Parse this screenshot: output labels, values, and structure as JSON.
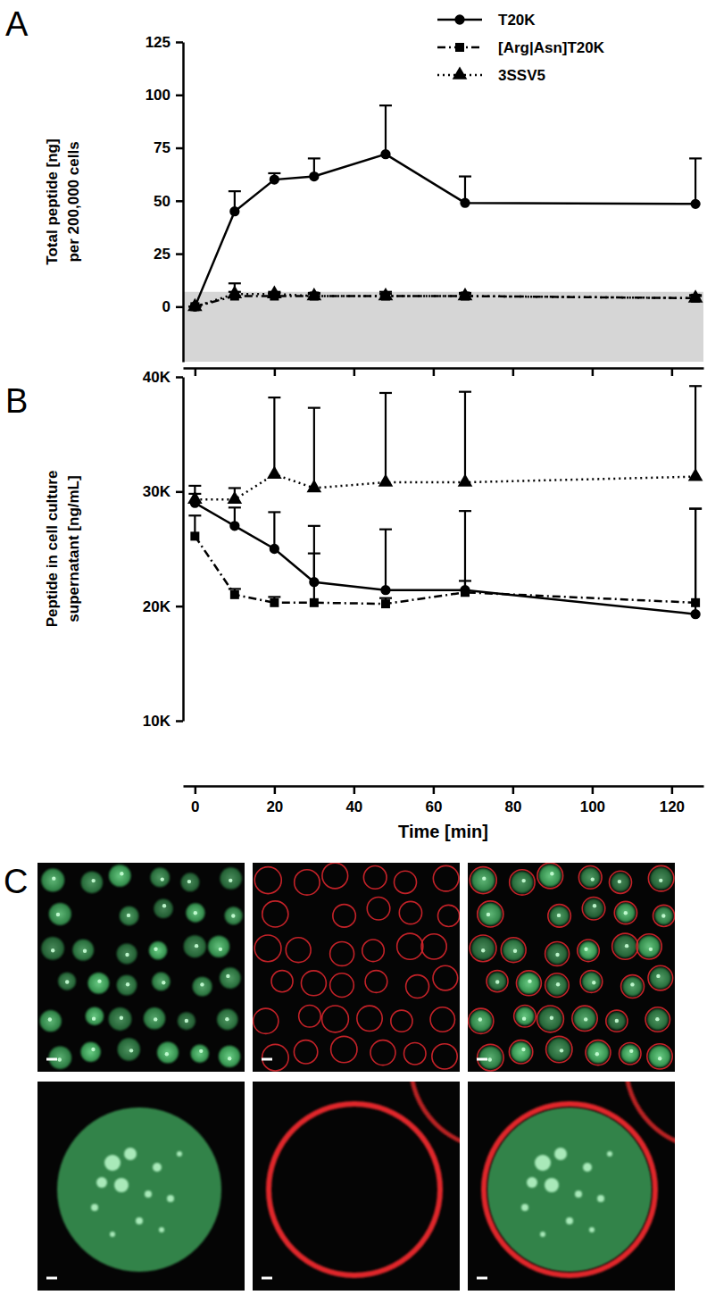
{
  "chart_data": [
    {
      "type": "line",
      "title": "A",
      "ylabel": [
        "Total peptide [ng]",
        "per 200,000 cells"
      ],
      "x": [
        0,
        10,
        20,
        30,
        48,
        68,
        126
      ],
      "xlim": [
        -3,
        128
      ],
      "xticks": [
        0,
        20,
        40,
        60,
        80,
        100,
        120
      ],
      "ylim": [
        -26,
        125
      ],
      "yticks": [
        0,
        25,
        50,
        75,
        100,
        125
      ],
      "tick_labels": "y",
      "legend": "top-right",
      "band": [
        -26,
        7
      ],
      "series": [
        {
          "name": "T20K",
          "color": "#000000",
          "marker": "circle",
          "line_style": "solid",
          "values": [
            0,
            45,
            60,
            61.5,
            72,
            49,
            48.5
          ],
          "errors": [
            0,
            9.5,
            3,
            8.5,
            23,
            12.5,
            21.5
          ]
        },
        {
          "name": "[Arg|Asn]T20K",
          "color": "#000000",
          "marker": "square",
          "line_style": "dashdot",
          "values": [
            0,
            5,
            5,
            5,
            5,
            5,
            4
          ],
          "errors": [
            0,
            6,
            1.5,
            1.5,
            2,
            1.5,
            1.5
          ]
        },
        {
          "name": "3SSV5",
          "color": "#000000",
          "marker": "triangle",
          "line_style": "dotted",
          "values": [
            0,
            6,
            6,
            5,
            5,
            5,
            4
          ],
          "errors": [
            0,
            1,
            1,
            1,
            1,
            1,
            1
          ]
        }
      ]
    },
    {
      "type": "line",
      "title": "B",
      "xlabel": "Time [min]",
      "ylabel": [
        "Peptide in cell culture",
        "supernatant [ng/mL]"
      ],
      "x": [
        0,
        10,
        20,
        30,
        48,
        68,
        126
      ],
      "xlim": [
        -3,
        128
      ],
      "xticks": [
        0,
        20,
        40,
        60,
        80,
        100,
        120
      ],
      "ylim": [
        10000,
        40000
      ],
      "yticks": [
        {
          "value": 10000,
          "label": "10K"
        },
        {
          "value": 20000,
          "label": "20K"
        },
        {
          "value": 30000,
          "label": "30K"
        },
        {
          "value": 40000,
          "label": "40K"
        }
      ],
      "series": [
        {
          "color": "#000000",
          "marker": "circle",
          "line_style": "solid",
          "values": [
            29000,
            27000,
            25000,
            22100,
            21400,
            21400,
            19300
          ],
          "errors": [
            1500,
            1600,
            3200,
            4900,
            5300,
            800,
            9200
          ]
        },
        {
          "color": "#000000",
          "marker": "square",
          "line_style": "dashdot",
          "values": [
            26100,
            21000,
            20300,
            20300,
            20200,
            21200,
            20300
          ],
          "errors": [
            1800,
            500,
            500,
            4300,
            500,
            7100,
            8200
          ]
        },
        {
          "color": "#000000",
          "marker": "triangle",
          "line_style": "dotted",
          "values": [
            29300,
            29300,
            31500,
            30300,
            30800,
            30800,
            31300
          ],
          "errors": [
            500,
            1000,
            6700,
            7000,
            7800,
            7900,
            7900
          ]
        }
      ]
    }
  ],
  "panel_c": {
    "label": "C"
  }
}
